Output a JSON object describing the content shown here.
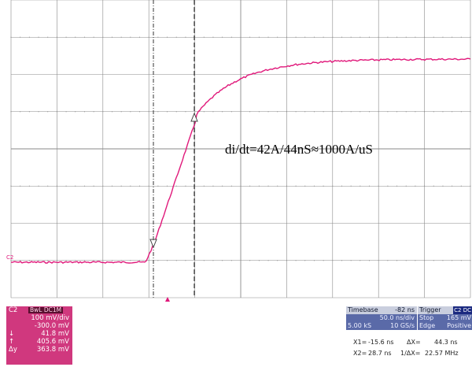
{
  "annotation": "di/dt=42A/44nS≈1000A/uS",
  "trace_marker_label": "C2",
  "channel": {
    "name": "C2",
    "mode": "BwL DC1M",
    "scale": "100 mV/div",
    "offset": "-300.0 mV",
    "readings": [
      {
        "label": "↓",
        "value": "41.8 mV"
      },
      {
        "label": "↑",
        "value": "405.6 mV"
      },
      {
        "label": "Δy",
        "value": "363.8 mV"
      }
    ]
  },
  "timebase": {
    "label": "Timebase",
    "delay": "-82 ns",
    "per_div": "50.0 ns/div",
    "samples": "5.00 kS",
    "sample_rate": "10 GS/s"
  },
  "trigger": {
    "label": "Trigger",
    "channel_badge": "C2 DC",
    "state": "Stop",
    "level": "165 mV",
    "type": "Edge",
    "slope": "Positive"
  },
  "cursors": {
    "x1_label": "X1=",
    "x1_value": "-15.6 ns",
    "x2_label": "X2=",
    "x2_value": "28.7 ns",
    "dx_label": "ΔX=",
    "dx_value": "44.3 ns",
    "inv_dx_label": "1/ΔX=",
    "inv_dx_value": "22.57 MHz"
  },
  "colors": {
    "trace": "#e0187a",
    "grid": "#8a8a8a",
    "channel_panel": "#d0387e",
    "info_box": "#5a6aa8"
  }
}
